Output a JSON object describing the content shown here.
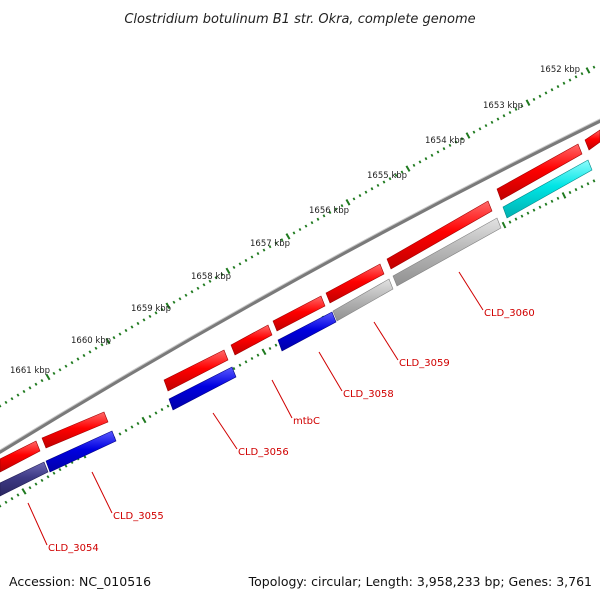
{
  "map": {
    "title": "Clostridium botulinum B1 str. Okra, complete genome",
    "accession": "Accession: NC_010516",
    "summary": "Topology: circular; Length: 3,958,233 bp; Genes: 3,761"
  },
  "colors": {
    "backbone": "#7a7a7a",
    "cds": "#ff0000",
    "gene_blue": "#0000e0",
    "gene_grey": "#b8b8b8",
    "gene_cyan": "#00e5e5",
    "gene_navy": "#3e3a85",
    "ruler": "#1f7a1f",
    "label": "#d00000"
  },
  "ruler_labels": [
    "1652 kbp",
    "1653 kbp",
    "1654 kbp",
    "1655 kbp",
    "1656 kbp",
    "1657 kbp",
    "1658 kbp",
    "1659 kbp",
    "1660 kbp",
    "1661 kbp"
  ],
  "gene_labels": [
    "CLD_3054",
    "CLD_3055",
    "CLD_3056",
    "mtbC",
    "CLD_3058",
    "CLD_3059",
    "CLD_3060"
  ]
}
